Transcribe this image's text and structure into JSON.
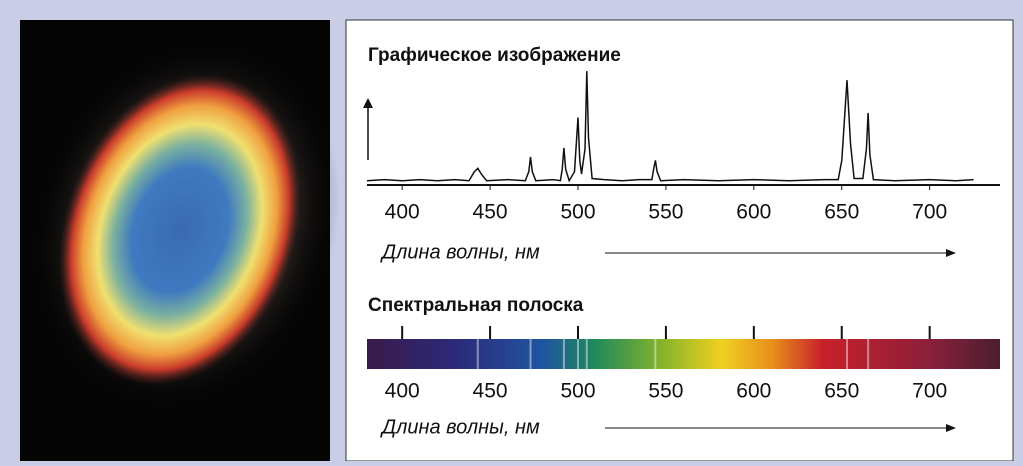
{
  "chart_data": [
    {
      "type": "line",
      "title": "Графическое изображение",
      "xlabel": "Длина волны, нм",
      "x": [
        380,
        390,
        400,
        410,
        420,
        430,
        438,
        441,
        443,
        445,
        448,
        460,
        470,
        472,
        473,
        474,
        476,
        486,
        490,
        491,
        492,
        493,
        495,
        498,
        500,
        501,
        502,
        504,
        505,
        506,
        508,
        515,
        525,
        535,
        542,
        543,
        544,
        545,
        547,
        560,
        580,
        600,
        620,
        640,
        648,
        650,
        653,
        655,
        657,
        662,
        664,
        665,
        666,
        668,
        680,
        700,
        715,
        725
      ],
      "values": [
        2,
        3,
        2,
        3,
        2,
        3,
        2,
        10,
        13,
        8,
        2,
        3,
        2,
        10,
        23,
        10,
        2,
        3,
        2,
        12,
        31,
        12,
        2,
        10,
        58,
        20,
        8,
        30,
        99,
        40,
        4,
        3,
        2,
        3,
        3,
        12,
        20,
        10,
        2,
        3,
        2,
        3,
        2,
        3,
        3,
        20,
        91,
        35,
        4,
        4,
        30,
        62,
        25,
        3,
        2,
        3,
        2,
        3
      ],
      "color": "#111111",
      "xlim": [
        380,
        740
      ],
      "ylim": [
        0,
        100
      ],
      "xticks": [
        400,
        450,
        500,
        550,
        600,
        650,
        700
      ]
    },
    {
      "type": "spectrum",
      "title": "Спектральная полоска",
      "xlabel": "Длина волны, нм",
      "emission_lines": [
        443,
        473,
        492,
        500,
        505,
        544,
        653,
        665
      ],
      "xlim": [
        380,
        740
      ],
      "xticks": [
        400,
        450,
        500,
        550,
        600,
        650,
        700
      ]
    }
  ]
}
